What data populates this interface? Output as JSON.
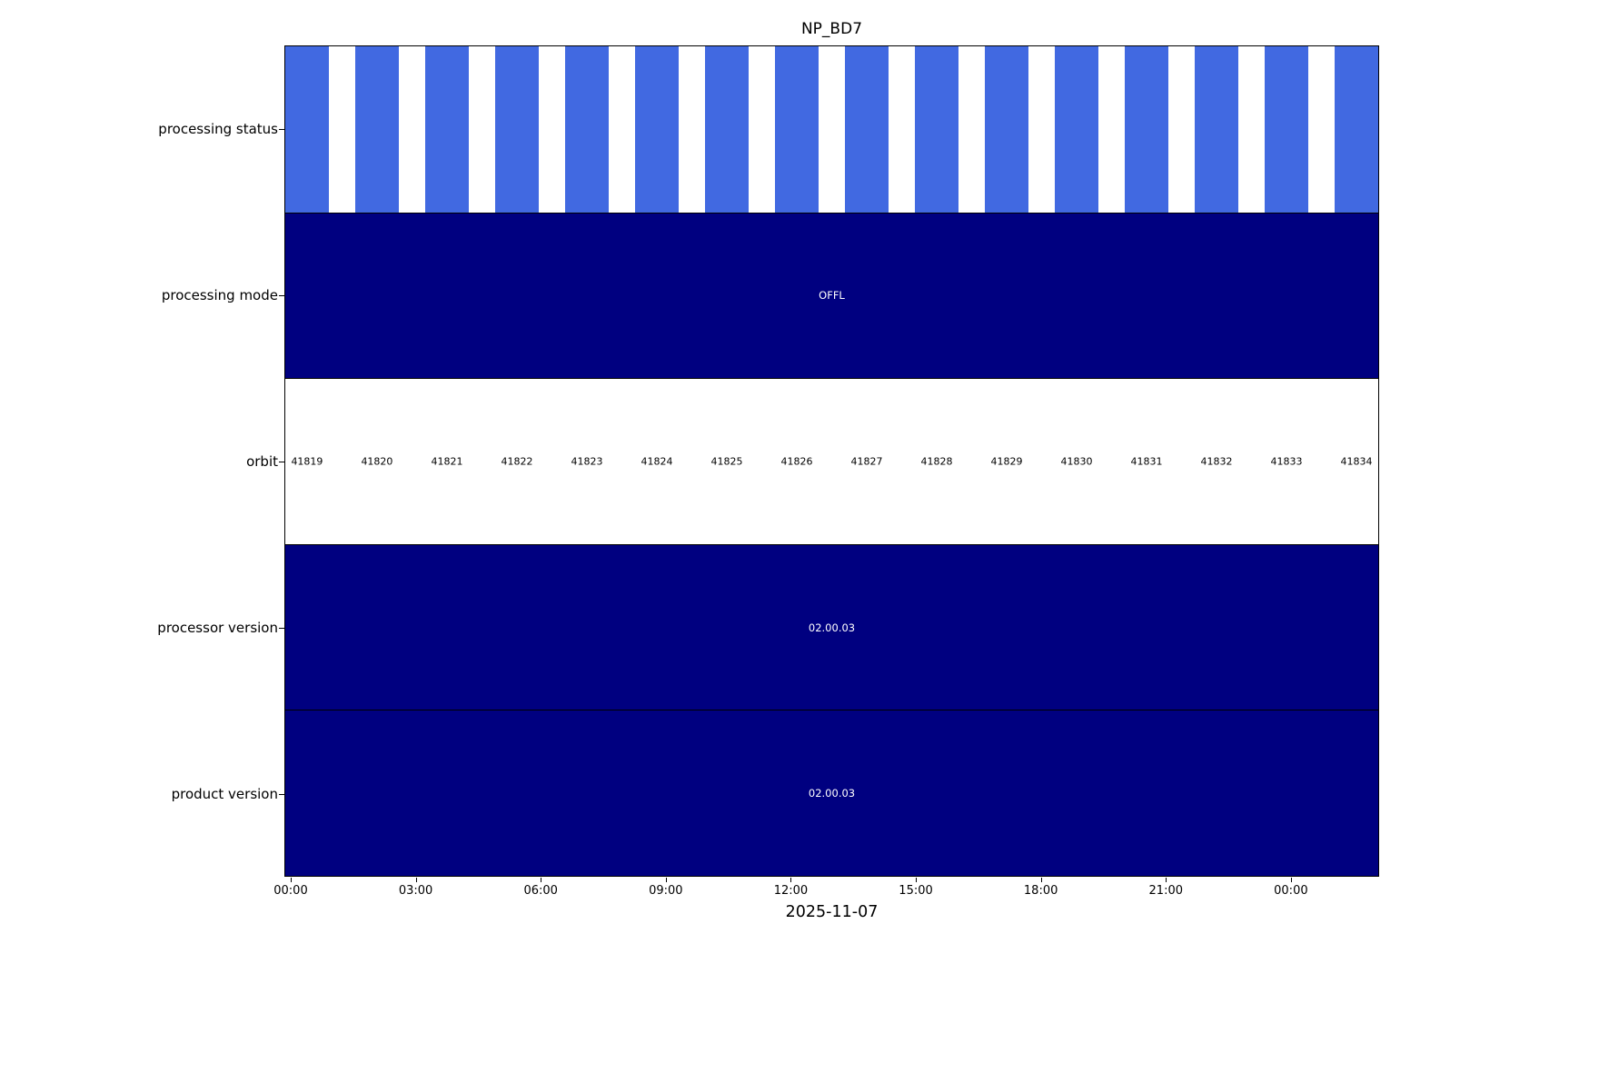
{
  "title": "NP_BD7",
  "xlabel": "2025-11-07",
  "colors": {
    "bar_blue": "#4169e1",
    "navy": "#000080",
    "background": "#ffffff",
    "text": "#000000"
  },
  "rows": [
    {
      "id": "processing-status",
      "label": "processing status",
      "type": "bars"
    },
    {
      "id": "processing-mode",
      "label": "processing mode",
      "type": "solid",
      "value": "OFFL"
    },
    {
      "id": "orbit",
      "label": "orbit",
      "type": "orbits"
    },
    {
      "id": "processor-version",
      "label": "processor version",
      "type": "solid",
      "value": "02.00.03"
    },
    {
      "id": "product-version",
      "label": "product version",
      "type": "solid",
      "value": "02.00.03"
    }
  ],
  "chart_data": {
    "type": "timeline",
    "title": "NP_BD7",
    "date": "2025-11-07",
    "rows": [
      "processing status",
      "processing mode",
      "orbit",
      "processor version",
      "product version"
    ],
    "orbits": [
      41819,
      41820,
      41821,
      41822,
      41823,
      41824,
      41825,
      41826,
      41827,
      41828,
      41829,
      41830,
      41831,
      41832,
      41833,
      41834
    ],
    "processing_status": {
      "orbits_with_data": 16,
      "bar_color": "#4169e1"
    },
    "processing_mode": "OFFL",
    "processor_version": "02.00.03",
    "product_version": "02.00.03",
    "x_ticks": [
      "00:00",
      "03:00",
      "06:00",
      "09:00",
      "12:00",
      "15:00",
      "18:00",
      "21:00",
      "00:00"
    ],
    "legend": "none",
    "grid": "off"
  }
}
